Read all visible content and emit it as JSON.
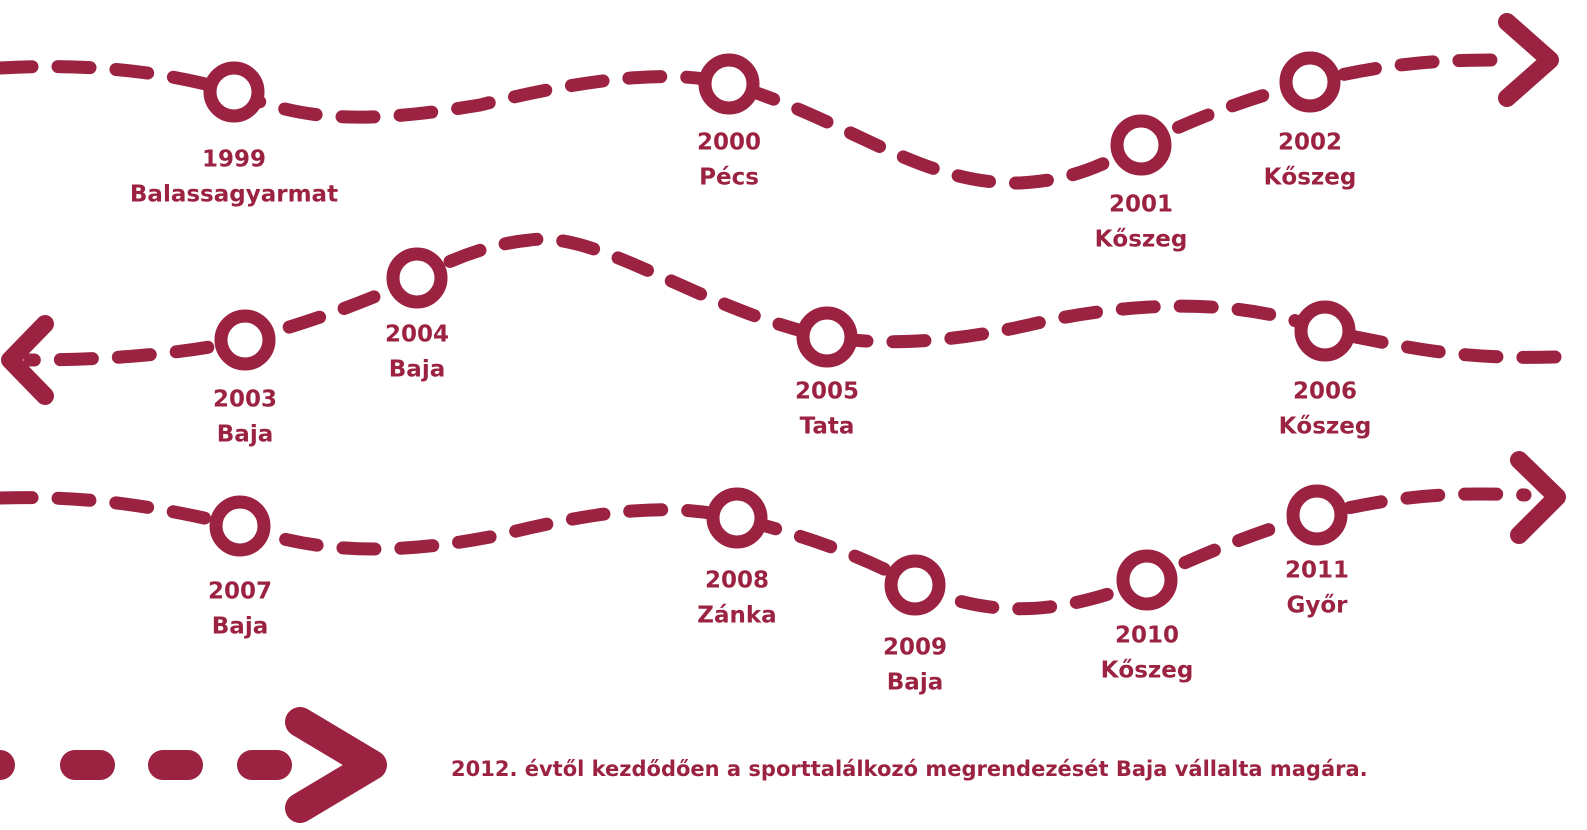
{
  "events": [
    {
      "year": "1999",
      "place": "Balassagyarmat"
    },
    {
      "year": "2000",
      "place": "Pécs"
    },
    {
      "year": "2001",
      "place": "Kőszeg"
    },
    {
      "year": "2002",
      "place": "Kőszeg"
    },
    {
      "year": "2003",
      "place": "Baja"
    },
    {
      "year": "2004",
      "place": "Baja"
    },
    {
      "year": "2005",
      "place": "Tata"
    },
    {
      "year": "2006",
      "place": "Kőszeg"
    },
    {
      "year": "2007",
      "place": "Baja"
    },
    {
      "year": "2008",
      "place": "Zánka"
    },
    {
      "year": "2009",
      "place": "Baja"
    },
    {
      "year": "2010",
      "place": "Kőszeg"
    },
    {
      "year": "2011",
      "place": "Győr"
    }
  ],
  "note": "2012. évtől kezdődően a sporttalálkozó megrendezését Baja vállalta magára."
}
